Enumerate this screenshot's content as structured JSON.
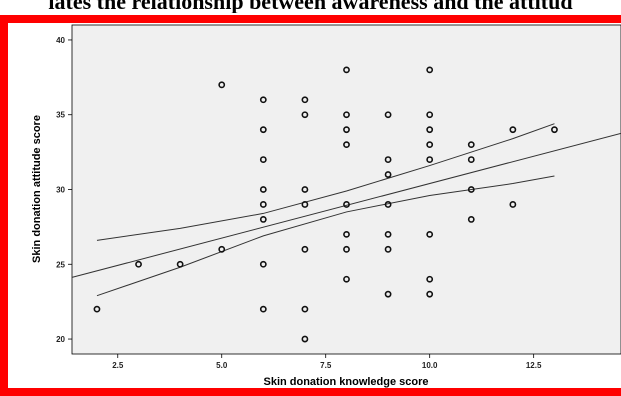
{
  "caption": "lates the relationship between awareness and the attitud",
  "chart_data": {
    "type": "scatter",
    "xlabel": "Skin donation knowledge score",
    "ylabel": "Skin donation attitude score",
    "xlim": [
      1.4,
      14.6
    ],
    "ylim": [
      19,
      41
    ],
    "x_ticks": [
      "2.5",
      "5.0",
      "7.5",
      "10.0",
      "12.5"
    ],
    "y_ticks": [
      "20",
      "25",
      "30",
      "35",
      "40"
    ],
    "grid": false,
    "points": [
      [
        2,
        22
      ],
      [
        3,
        25
      ],
      [
        4,
        25
      ],
      [
        5,
        26
      ],
      [
        5,
        37
      ],
      [
        6,
        22
      ],
      [
        6,
        25
      ],
      [
        6,
        28
      ],
      [
        6,
        29
      ],
      [
        6,
        30
      ],
      [
        6,
        32
      ],
      [
        6,
        34
      ],
      [
        6,
        36
      ],
      [
        7,
        20
      ],
      [
        7,
        22
      ],
      [
        7,
        26
      ],
      [
        7,
        29
      ],
      [
        7,
        30
      ],
      [
        7,
        35
      ],
      [
        7,
        36
      ],
      [
        8,
        24
      ],
      [
        8,
        26
      ],
      [
        8,
        27
      ],
      [
        8,
        29
      ],
      [
        8,
        33
      ],
      [
        8,
        34
      ],
      [
        8,
        35
      ],
      [
        8,
        38
      ],
      [
        9,
        23
      ],
      [
        9,
        26
      ],
      [
        9,
        27
      ],
      [
        9,
        29
      ],
      [
        9,
        31
      ],
      [
        9,
        32
      ],
      [
        9,
        35
      ],
      [
        10,
        23
      ],
      [
        10,
        24
      ],
      [
        10,
        27
      ],
      [
        10,
        32
      ],
      [
        10,
        33
      ],
      [
        10,
        34
      ],
      [
        10,
        35
      ],
      [
        10,
        38
      ],
      [
        11,
        28
      ],
      [
        11,
        30
      ],
      [
        11,
        32
      ],
      [
        11,
        33
      ],
      [
        12,
        29
      ],
      [
        12,
        34
      ],
      [
        13,
        34
      ]
    ],
    "fit_line": {
      "intercept": 23.1,
      "slope": 0.73
    },
    "ci_upper": {
      "x": [
        2,
        4,
        6,
        8,
        10,
        12,
        13
      ],
      "y": [
        26.6,
        27.4,
        28.4,
        29.9,
        31.6,
        33.4,
        34.4
      ]
    },
    "ci_lower": {
      "x": [
        2,
        4,
        6,
        8,
        10,
        12,
        13
      ],
      "y": [
        22.9,
        24.8,
        26.9,
        28.5,
        29.6,
        30.4,
        30.9
      ]
    }
  }
}
